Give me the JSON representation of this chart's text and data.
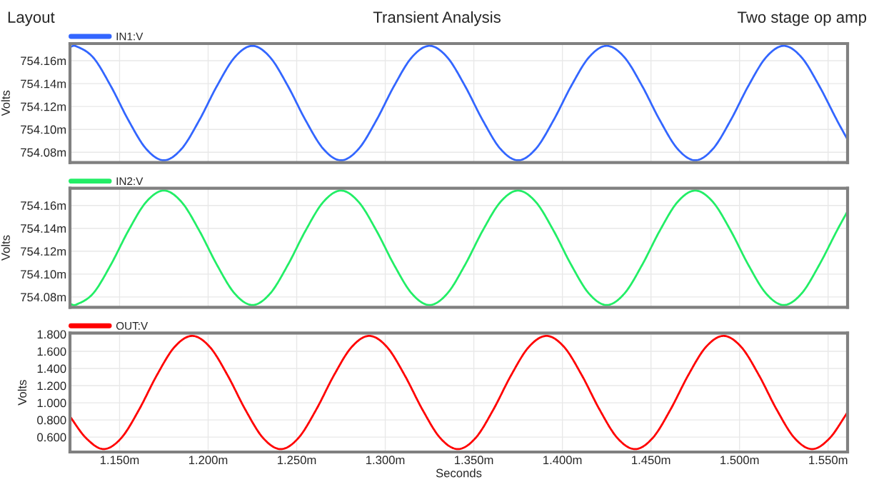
{
  "chart_data": [
    {
      "type": "line",
      "title": "Transient Analysis",
      "annotations": [
        "Layout",
        "Two stage op amp"
      ],
      "ylabel": "Volts",
      "legend": "top left",
      "grid": true,
      "tick_labels": "y",
      "line_style": "solid",
      "xlim": [
        1.122,
        1.561
      ],
      "xticks": [
        {
          "value": 1.15,
          "label": null
        },
        {
          "value": 1.2,
          "label": null
        },
        {
          "value": 1.25,
          "label": null
        },
        {
          "value": 1.3,
          "label": null
        },
        {
          "value": 1.35,
          "label": null
        },
        {
          "value": 1.4,
          "label": null
        },
        {
          "value": 1.45,
          "label": null
        },
        {
          "value": 1.5,
          "label": null
        },
        {
          "value": 1.55,
          "label": null
        }
      ],
      "ylim": [
        754.071,
        754.175
      ],
      "yticks": [
        {
          "value": 754.08,
          "label": "754.08m"
        },
        {
          "value": 754.1,
          "label": "754.10m"
        },
        {
          "value": 754.12,
          "label": "754.12m"
        },
        {
          "value": 754.14,
          "label": "754.14m"
        },
        {
          "value": 754.16,
          "label": "754.16m"
        }
      ],
      "series": [
        {
          "name": "IN1:V",
          "color": "#3366ff",
          "x": [
            1.122,
            1.125,
            1.135,
            1.145,
            1.155,
            1.165,
            1.175,
            1.185,
            1.195,
            1.205,
            1.215,
            1.225,
            1.235,
            1.245,
            1.255,
            1.265,
            1.275,
            1.285,
            1.295,
            1.305,
            1.315,
            1.325,
            1.335,
            1.345,
            1.355,
            1.365,
            1.375,
            1.385,
            1.395,
            1.405,
            1.415,
            1.425,
            1.435,
            1.445,
            1.455,
            1.465,
            1.475,
            1.485,
            1.495,
            1.505,
            1.515,
            1.525,
            1.535,
            1.545,
            1.555,
            1.561
          ],
          "values": [
            754.172,
            754.173,
            754.163,
            754.138,
            754.108,
            754.083,
            754.073,
            754.083,
            754.108,
            754.138,
            754.163,
            754.173,
            754.163,
            754.138,
            754.108,
            754.083,
            754.073,
            754.083,
            754.108,
            754.138,
            754.163,
            754.173,
            754.163,
            754.138,
            754.108,
            754.083,
            754.073,
            754.083,
            754.108,
            754.138,
            754.163,
            754.173,
            754.163,
            754.138,
            754.108,
            754.083,
            754.073,
            754.083,
            754.108,
            754.138,
            754.163,
            754.173,
            754.163,
            754.138,
            754.108,
            754.091
          ]
        }
      ]
    },
    {
      "type": "line",
      "ylabel": "Volts",
      "legend": "top left",
      "grid": true,
      "tick_labels": "y",
      "line_style": "solid",
      "xlim": [
        1.122,
        1.561
      ],
      "xticks": [
        {
          "value": 1.15,
          "label": null
        },
        {
          "value": 1.2,
          "label": null
        },
        {
          "value": 1.25,
          "label": null
        },
        {
          "value": 1.3,
          "label": null
        },
        {
          "value": 1.35,
          "label": null
        },
        {
          "value": 1.4,
          "label": null
        },
        {
          "value": 1.45,
          "label": null
        },
        {
          "value": 1.5,
          "label": null
        },
        {
          "value": 1.55,
          "label": null
        }
      ],
      "ylim": [
        754.071,
        754.175
      ],
      "yticks": [
        {
          "value": 754.08,
          "label": "754.08m"
        },
        {
          "value": 754.1,
          "label": "754.10m"
        },
        {
          "value": 754.12,
          "label": "754.12m"
        },
        {
          "value": 754.14,
          "label": "754.14m"
        },
        {
          "value": 754.16,
          "label": "754.16m"
        }
      ],
      "series": [
        {
          "name": "IN2:V",
          "color": "#22ee66",
          "x": [
            1.122,
            1.125,
            1.135,
            1.145,
            1.155,
            1.165,
            1.175,
            1.185,
            1.195,
            1.205,
            1.215,
            1.225,
            1.235,
            1.245,
            1.255,
            1.265,
            1.275,
            1.285,
            1.295,
            1.305,
            1.315,
            1.325,
            1.335,
            1.345,
            1.355,
            1.365,
            1.375,
            1.385,
            1.395,
            1.405,
            1.415,
            1.425,
            1.435,
            1.445,
            1.455,
            1.465,
            1.475,
            1.485,
            1.495,
            1.505,
            1.515,
            1.525,
            1.535,
            1.545,
            1.555,
            1.561
          ],
          "values": [
            754.074,
            754.073,
            754.083,
            754.108,
            754.138,
            754.163,
            754.173,
            754.163,
            754.138,
            754.108,
            754.083,
            754.073,
            754.083,
            754.108,
            754.138,
            754.163,
            754.173,
            754.163,
            754.138,
            754.108,
            754.083,
            754.073,
            754.083,
            754.108,
            754.138,
            754.163,
            754.173,
            754.163,
            754.138,
            754.108,
            754.083,
            754.073,
            754.083,
            754.108,
            754.138,
            754.163,
            754.173,
            754.163,
            754.138,
            754.108,
            754.083,
            754.073,
            754.083,
            754.108,
            754.138,
            754.155
          ]
        }
      ]
    },
    {
      "type": "line",
      "xlabel": "Seconds",
      "ylabel": "Volts",
      "legend": "top left",
      "grid": true,
      "line_style": "solid",
      "xlim": [
        1.122,
        1.561
      ],
      "xticks": [
        {
          "value": 1.15,
          "label": "1.150m"
        },
        {
          "value": 1.2,
          "label": "1.200m"
        },
        {
          "value": 1.25,
          "label": "1.250m"
        },
        {
          "value": 1.3,
          "label": "1.300m"
        },
        {
          "value": 1.35,
          "label": "1.350m"
        },
        {
          "value": 1.4,
          "label": "1.400m"
        },
        {
          "value": 1.45,
          "label": "1.450m"
        },
        {
          "value": 1.5,
          "label": "1.500m"
        },
        {
          "value": 1.55,
          "label": "1.550m"
        }
      ],
      "ylim": [
        0.426,
        1.814
      ],
      "yticks": [
        {
          "value": 0.6,
          "label": "0.600"
        },
        {
          "value": 0.8,
          "label": "0.800"
        },
        {
          "value": 1.0,
          "label": "1.000"
        },
        {
          "value": 1.2,
          "label": "1.200"
        },
        {
          "value": 1.4,
          "label": "1.400"
        },
        {
          "value": 1.6,
          "label": "1.600"
        },
        {
          "value": 1.8,
          "label": "1.800"
        }
      ],
      "series": [
        {
          "name": "OUT:V",
          "color": "#ff0000",
          "x": [
            1.122,
            1.131,
            1.141,
            1.151,
            1.161,
            1.171,
            1.181,
            1.191,
            1.201,
            1.211,
            1.221,
            1.231,
            1.241,
            1.251,
            1.261,
            1.271,
            1.281,
            1.291,
            1.301,
            1.311,
            1.321,
            1.331,
            1.341,
            1.351,
            1.361,
            1.371,
            1.381,
            1.391,
            1.401,
            1.411,
            1.421,
            1.431,
            1.441,
            1.451,
            1.461,
            1.471,
            1.481,
            1.491,
            1.501,
            1.511,
            1.521,
            1.531,
            1.541,
            1.551,
            1.561
          ],
          "values": [
            0.84,
            0.59,
            0.46,
            0.59,
            0.92,
            1.32,
            1.65,
            1.78,
            1.65,
            1.32,
            0.92,
            0.59,
            0.46,
            0.59,
            0.92,
            1.32,
            1.65,
            1.78,
            1.65,
            1.32,
            0.92,
            0.59,
            0.46,
            0.59,
            0.92,
            1.32,
            1.65,
            1.78,
            1.65,
            1.32,
            0.92,
            0.59,
            0.46,
            0.59,
            0.92,
            1.32,
            1.65,
            1.78,
            1.65,
            1.32,
            0.92,
            0.59,
            0.46,
            0.59,
            0.89
          ]
        }
      ]
    }
  ]
}
